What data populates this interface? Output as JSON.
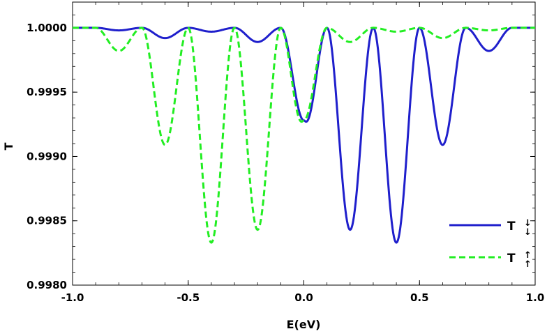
{
  "chart_data": {
    "type": "line",
    "xlabel": "E(eV)",
    "ylabel": "T",
    "xlim": [
      -1.0,
      1.0
    ],
    "ylim": [
      0.998,
      1.0002
    ],
    "x_ticks": [
      "-1.0",
      "-0.5",
      "0.0",
      "0.5",
      "1.0"
    ],
    "x_tick_values": [
      -1.0,
      -0.5,
      0.0,
      0.5,
      1.0
    ],
    "y_ticks": [
      "0.9980",
      "0.9985",
      "0.9990",
      "0.9995",
      "1.0000"
    ],
    "y_tick_values": [
      0.998,
      0.9985,
      0.999,
      0.9995,
      1.0
    ],
    "grid": false,
    "legend_position": "bottom-right",
    "series": [
      {
        "name": "T",
        "legend_arrows": "↓↓",
        "color": "#1f1fcc",
        "style": "solid",
        "x": [
          -1.0,
          -0.9,
          -0.8,
          -0.7,
          -0.6,
          -0.5,
          -0.4,
          -0.3,
          -0.2,
          -0.1,
          0.0,
          0.01,
          0.1,
          0.2,
          0.3,
          0.4,
          0.5,
          0.6,
          0.7,
          0.8,
          0.9,
          1.0
        ],
        "y": [
          1.0,
          1.0,
          0.99998,
          1.0,
          0.99992,
          1.0,
          0.99997,
          1.0,
          0.99989,
          1.0,
          0.99928,
          0.99927,
          1.0,
          0.99843,
          1.0,
          0.99833,
          1.0,
          0.99909,
          1.0,
          0.99982,
          1.0,
          1.0
        ]
      },
      {
        "name": "T",
        "legend_arrows": "↑↑",
        "color": "#22ee22",
        "style": "dashed",
        "x": [
          -1.0,
          -0.9,
          -0.8,
          -0.7,
          -0.6,
          -0.5,
          -0.4,
          -0.3,
          -0.2,
          -0.1,
          -0.01,
          0.0,
          0.1,
          0.2,
          0.3,
          0.4,
          0.5,
          0.6,
          0.7,
          0.8,
          0.9,
          1.0
        ],
        "y": [
          1.0,
          1.0,
          0.99982,
          1.0,
          0.99909,
          1.0,
          0.99833,
          1.0,
          0.99843,
          1.0,
          0.99927,
          0.99928,
          1.0,
          0.99989,
          1.0,
          0.99997,
          1.0,
          0.99992,
          1.0,
          0.99998,
          1.0,
          1.0
        ]
      }
    ]
  }
}
